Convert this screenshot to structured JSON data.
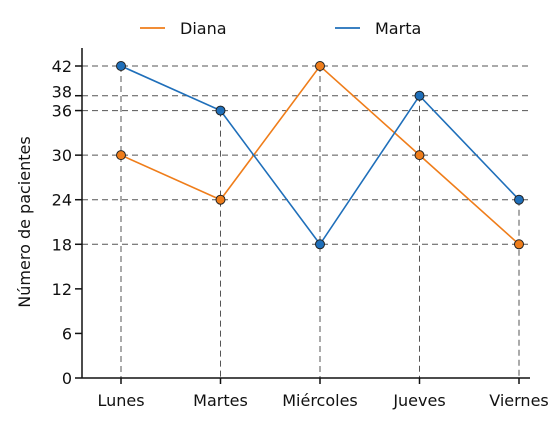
{
  "chart_data": {
    "type": "line",
    "categories": [
      "Lunes",
      "Martes",
      "Miércoles",
      "Jueves",
      "Viernes"
    ],
    "series": [
      {
        "name": "Diana",
        "color": "#ef7d1a",
        "values": [
          30,
          24,
          42,
          30,
          18
        ]
      },
      {
        "name": "Marta",
        "color": "#1f6fba",
        "values": [
          42,
          36,
          18,
          38,
          24
        ]
      }
    ],
    "ylabel": "Número de pacientes",
    "xlabel": "",
    "ylim": [
      0,
      42
    ],
    "yticks": [
      0,
      6,
      12,
      18,
      24,
      30,
      36,
      38,
      42
    ],
    "legend_position": "top",
    "guide_lines": "dashed"
  }
}
